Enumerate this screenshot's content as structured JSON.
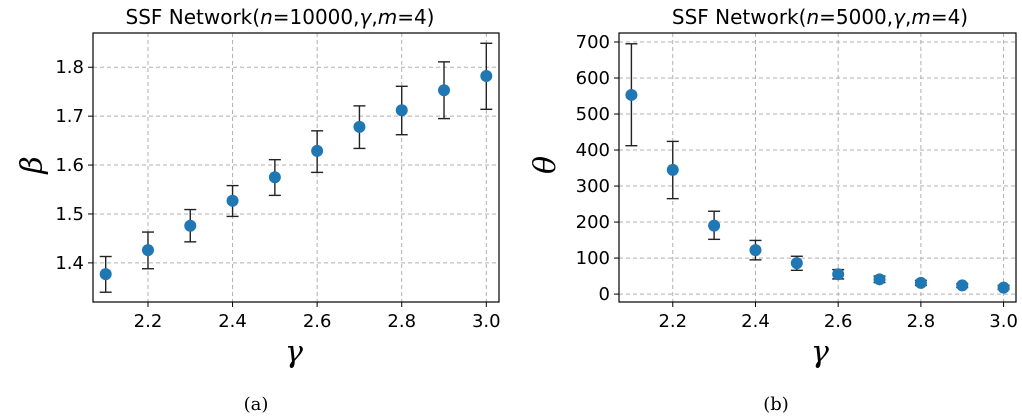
{
  "chart_data": [
    {
      "type": "scatter",
      "title": "SSF Network(n=10000,γ,m=4)",
      "xlabel": "γ",
      "ylabel": "β",
      "caption": "(a)",
      "xlim": [
        2.07,
        3.03
      ],
      "ylim": [
        1.32,
        1.87
      ],
      "xticks": [
        2.2,
        2.4,
        2.6,
        2.8,
        3.0
      ],
      "xtick_labels": [
        "2.2",
        "2.4",
        "2.6",
        "2.8",
        "3.0"
      ],
      "yticks": [
        1.4,
        1.5,
        1.6,
        1.7,
        1.8
      ],
      "ytick_labels": [
        "1.4",
        "1.5",
        "1.6",
        "1.7",
        "1.8"
      ],
      "grid": true,
      "marker_color": "#1f77b4",
      "points": [
        {
          "x": 2.1,
          "y": 1.377,
          "lo": 1.34,
          "hi": 1.413
        },
        {
          "x": 2.2,
          "y": 1.426,
          "lo": 1.388,
          "hi": 1.463
        },
        {
          "x": 2.3,
          "y": 1.476,
          "lo": 1.443,
          "hi": 1.509
        },
        {
          "x": 2.4,
          "y": 1.527,
          "lo": 1.495,
          "hi": 1.558
        },
        {
          "x": 2.5,
          "y": 1.575,
          "lo": 1.538,
          "hi": 1.611
        },
        {
          "x": 2.6,
          "y": 1.629,
          "lo": 1.585,
          "hi": 1.67
        },
        {
          "x": 2.7,
          "y": 1.678,
          "lo": 1.634,
          "hi": 1.721
        },
        {
          "x": 2.8,
          "y": 1.712,
          "lo": 1.662,
          "hi": 1.761
        },
        {
          "x": 2.9,
          "y": 1.753,
          "lo": 1.695,
          "hi": 1.811
        },
        {
          "x": 3.0,
          "y": 1.782,
          "lo": 1.714,
          "hi": 1.849
        }
      ]
    },
    {
      "type": "scatter",
      "title": "SSF Network(n=5000,γ,m=4)",
      "xlabel": "γ",
      "ylabel": "θ",
      "caption": "(b)",
      "xlim": [
        2.07,
        3.03
      ],
      "ylim": [
        -22,
        725
      ],
      "xticks": [
        2.2,
        2.4,
        2.6,
        2.8,
        3.0
      ],
      "xtick_labels": [
        "2.2",
        "2.4",
        "2.6",
        "2.8",
        "3.0"
      ],
      "yticks": [
        0,
        100,
        200,
        300,
        400,
        500,
        600,
        700
      ],
      "ytick_labels": [
        "0",
        "100",
        "200",
        "300",
        "400",
        "500",
        "600",
        "700"
      ],
      "grid": true,
      "marker_color": "#1f77b4",
      "points": [
        {
          "x": 2.1,
          "y": 553,
          "lo": 412,
          "hi": 695
        },
        {
          "x": 2.2,
          "y": 345,
          "lo": 265,
          "hi": 424
        },
        {
          "x": 2.3,
          "y": 190,
          "lo": 152,
          "hi": 230
        },
        {
          "x": 2.4,
          "y": 122,
          "lo": 95,
          "hi": 149
        },
        {
          "x": 2.5,
          "y": 86,
          "lo": 66,
          "hi": 105
        },
        {
          "x": 2.6,
          "y": 55,
          "lo": 42,
          "hi": 68
        },
        {
          "x": 2.7,
          "y": 41,
          "lo": 32,
          "hi": 50
        },
        {
          "x": 2.8,
          "y": 31,
          "lo": 24,
          "hi": 38
        },
        {
          "x": 2.9,
          "y": 24,
          "lo": 18,
          "hi": 29
        },
        {
          "x": 3.0,
          "y": 18,
          "lo": 13,
          "hi": 24
        }
      ]
    }
  ]
}
